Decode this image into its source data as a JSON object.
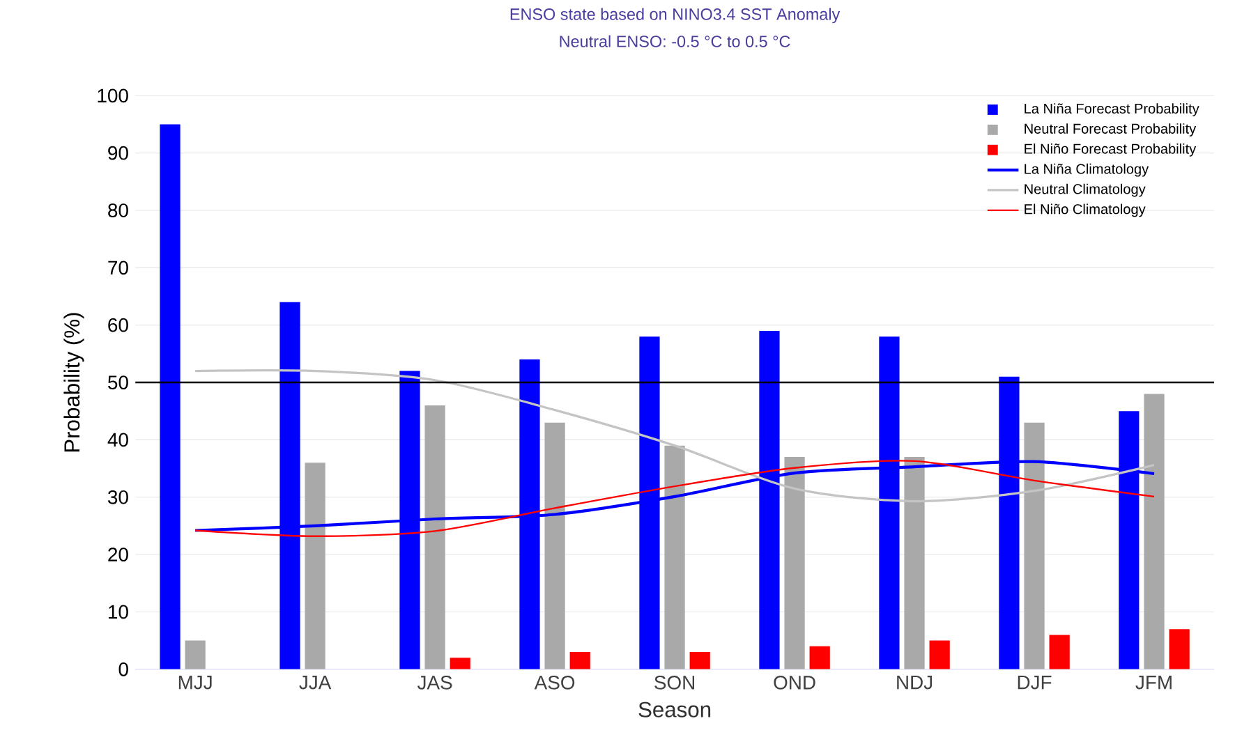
{
  "chart_data": {
    "type": "bar",
    "title": "ENSO state based on NINO3.4 SST Anomaly",
    "subtitle": "Neutral ENSO: -0.5 °C to 0.5 °C",
    "xlabel": "Season",
    "ylabel": "Probability (%)",
    "categories": [
      "MJJ",
      "JJA",
      "JAS",
      "ASO",
      "SON",
      "OND",
      "NDJ",
      "DJF",
      "JFM"
    ],
    "series": [
      {
        "name": "La Niña Forecast Probability",
        "color": "#0000ff",
        "values": [
          95,
          64,
          52,
          54,
          58,
          59,
          58,
          51,
          45
        ]
      },
      {
        "name": "Neutral Forecast Probability",
        "color": "#a9a9a9",
        "values": [
          5,
          36,
          46,
          43,
          39,
          37,
          37,
          43,
          48
        ]
      },
      {
        "name": "El Niño Forecast Probability",
        "color": "#ff0000",
        "values": [
          0,
          0,
          2,
          3,
          3,
          4,
          5,
          6,
          7
        ]
      },
      {
        "type": "line",
        "name": "La Niña Climatology",
        "color": "#0000ff",
        "values": [
          24.2,
          25,
          26.2,
          27,
          30.1,
          34.2,
          35.3,
          36.2,
          34.1
        ]
      },
      {
        "type": "line",
        "name": "Neutral Climatology",
        "color": "#c4c4c4",
        "values": [
          52,
          52,
          50.4,
          45.2,
          39,
          31.5,
          29.3,
          31.1,
          35.6
        ]
      },
      {
        "type": "line",
        "name": "El Niño Climatology",
        "color": "#ff0000",
        "values": [
          24.2,
          23.2,
          24.1,
          28.1,
          31.9,
          35.1,
          36.3,
          32.9,
          30.1
        ]
      }
    ],
    "ylim": [
      0,
      100
    ],
    "yticks": [
      0,
      10,
      20,
      30,
      40,
      50,
      60,
      70,
      80,
      90,
      100
    ],
    "grid": "y",
    "legend": "top right",
    "marker": "none",
    "line_style": "solid",
    "ref_lines": [
      {
        "axis": "y",
        "value": 50,
        "color": "#000000"
      }
    ]
  }
}
